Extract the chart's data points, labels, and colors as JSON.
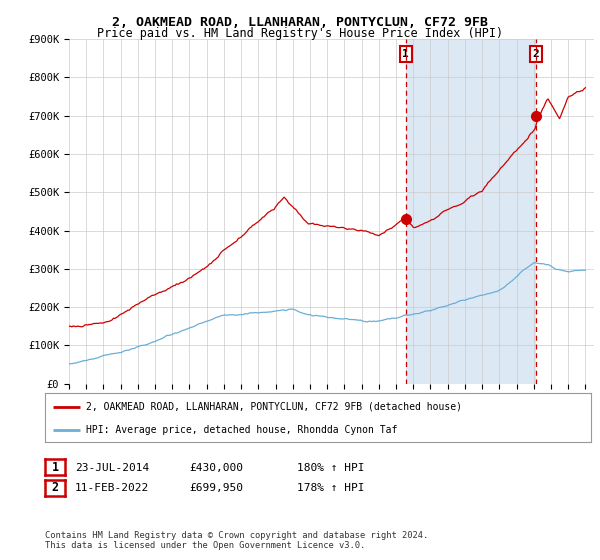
{
  "title": "2, OAKMEAD ROAD, LLANHARAN, PONTYCLUN, CF72 9FB",
  "subtitle": "Price paid vs. HM Land Registry's House Price Index (HPI)",
  "hpi_color": "#6baed6",
  "price_color": "#cc0000",
  "sale1_date": 2014.56,
  "sale1_price": 430000,
  "sale2_date": 2022.12,
  "sale2_price": 699950,
  "vline_color": "#cc0000",
  "shade_color": "#dce9f5",
  "background_color": "#ffffff",
  "grid_color": "#cccccc",
  "legend_entry1": "2, OAKMEAD ROAD, LLANHARAN, PONTYCLUN, CF72 9FB (detached house)",
  "legend_entry2": "HPI: Average price, detached house, Rhondda Cynon Taf",
  "table_row1": [
    "1",
    "23-JUL-2014",
    "£430,000",
    "180% ↑ HPI"
  ],
  "table_row2": [
    "2",
    "11-FEB-2022",
    "£699,950",
    "178% ↑ HPI"
  ],
  "footer": "Contains HM Land Registry data © Crown copyright and database right 2024.\nThis data is licensed under the Open Government Licence v3.0.",
  "yticks": [
    0,
    100000,
    200000,
    300000,
    400000,
    500000,
    600000,
    700000,
    800000,
    900000
  ],
  "ytick_labels": [
    "£0",
    "£100K",
    "£200K",
    "£300K",
    "£400K",
    "£500K",
    "£600K",
    "£700K",
    "£800K",
    "£900K"
  ]
}
